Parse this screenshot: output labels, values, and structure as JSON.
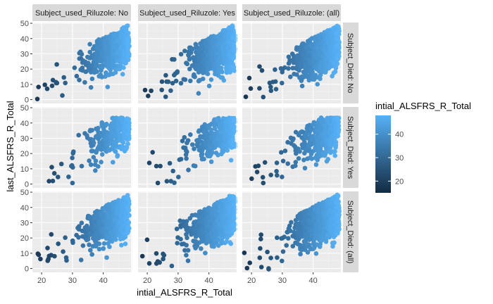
{
  "chart_data": {
    "type": "scatter",
    "xlabel": "intial_ALSFRS_R_Total",
    "ylabel": "last_ALSFRS_R_Total",
    "x_ticks": [
      20,
      30,
      40
    ],
    "y_ticks": [
      0,
      10,
      20,
      30,
      40,
      50
    ],
    "xlim": [
      17,
      49
    ],
    "ylim": [
      -2.5,
      50.5
    ],
    "grid": true,
    "panel_background": "#ebebeb",
    "strip_background": "#d9d9d9",
    "facet_columns": [
      "Subject_used_Riluzole: No",
      "Subject_used_Riluzole: Yes",
      "Subject_used_Riluzole: (all)"
    ],
    "facet_rows": [
      "Subject_Died: No",
      "Subject_Died: Yes",
      "Subject_Died: (all)"
    ],
    "color_scale": {
      "title": "intial_ALSFRS_R_Total",
      "low_color": "#132b43",
      "high_color": "#56b1f7",
      "min": 15,
      "max": 48,
      "breaks": [
        20,
        30,
        40
      ],
      "legend_position": "right"
    },
    "panels": [
      {
        "row": 0,
        "col": 0,
        "x_range": [
          18,
          48
        ],
        "y_range": [
          0,
          48
        ],
        "density": 1.0
      },
      {
        "row": 0,
        "col": 1,
        "x_range": [
          18,
          48
        ],
        "y_range": [
          0,
          48
        ],
        "density": 1.4
      },
      {
        "row": 0,
        "col": 2,
        "x_range": [
          18,
          48
        ],
        "y_range": [
          0,
          48
        ],
        "density": 1.6
      },
      {
        "row": 1,
        "col": 0,
        "x_range": [
          21,
          48
        ],
        "y_range": [
          0,
          43
        ],
        "density": 0.55
      },
      {
        "row": 1,
        "col": 1,
        "x_range": [
          20,
          48
        ],
        "y_range": [
          0,
          43
        ],
        "density": 0.65
      },
      {
        "row": 1,
        "col": 2,
        "x_range": [
          20,
          48
        ],
        "y_range": [
          0,
          43
        ],
        "density": 0.75
      },
      {
        "row": 2,
        "col": 0,
        "x_range": [
          18,
          48
        ],
        "y_range": [
          0,
          48
        ],
        "density": 1.2
      },
      {
        "row": 2,
        "col": 1,
        "x_range": [
          18,
          48
        ],
        "y_range": [
          0,
          48
        ],
        "density": 1.6
      },
      {
        "row": 2,
        "col": 2,
        "x_range": [
          18,
          48
        ],
        "y_range": [
          0,
          48
        ],
        "density": 1.9
      }
    ]
  }
}
